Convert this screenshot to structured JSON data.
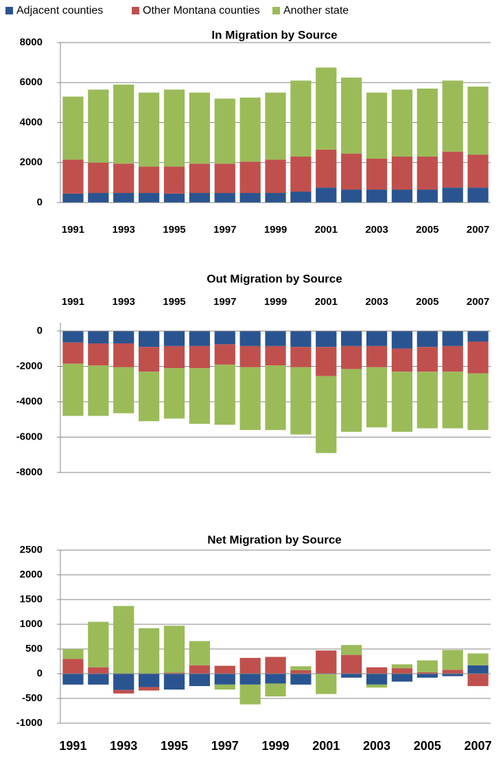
{
  "legend": {
    "series": [
      {
        "name": "Adjacent counties",
        "color": "#2a5490"
      },
      {
        "name": "Other Montana counties",
        "color": "#c0504d"
      },
      {
        "name": "Another state",
        "color": "#9bbb59"
      }
    ]
  },
  "chart_data": [
    {
      "type": "bar",
      "stacked": true,
      "title": "In Migration  by Source",
      "categories": [
        "1991",
        null,
        "1993",
        null,
        "1995",
        null,
        "1997",
        null,
        "1999",
        null,
        "2001",
        null,
        "2003",
        null,
        "2005",
        null,
        "2007"
      ],
      "series": [
        {
          "values": [
            450,
            480,
            480,
            480,
            450,
            480,
            480,
            480,
            480,
            550,
            750,
            650,
            650,
            650,
            650,
            750,
            750
          ]
        },
        {
          "values": [
            1700,
            1520,
            1470,
            1320,
            1350,
            1470,
            1470,
            1570,
            1670,
            1750,
            1900,
            1800,
            1550,
            1650,
            1650,
            1800,
            1650
          ]
        },
        {
          "values": [
            3150,
            3650,
            3950,
            3700,
            3850,
            3550,
            3250,
            3200,
            3350,
            3800,
            4100,
            3800,
            3300,
            3350,
            3400,
            3550,
            3400
          ]
        }
      ],
      "ylim": [
        0,
        8000
      ],
      "yticks": [
        0,
        2000,
        4000,
        6000,
        8000
      ],
      "grid": true
    },
    {
      "type": "bar",
      "stacked": true,
      "title": "Out Migration  by Source",
      "categories": [
        "1991",
        null,
        "1993",
        null,
        "1995",
        null,
        "1997",
        null,
        "1999",
        null,
        "2001",
        null,
        "2003",
        null,
        "2005",
        null,
        "2007"
      ],
      "series": [
        {
          "values": [
            -650,
            -700,
            -700,
            -900,
            -850,
            -850,
            -750,
            -850,
            -850,
            -900,
            -900,
            -850,
            -850,
            -1000,
            -900,
            -850,
            -600
          ]
        },
        {
          "values": [
            -1200,
            -1250,
            -1350,
            -1400,
            -1250,
            -1250,
            -1150,
            -1200,
            -1100,
            -1150,
            -1650,
            -1300,
            -1200,
            -1300,
            -1400,
            -1450,
            -1800
          ]
        },
        {
          "values": [
            -2950,
            -2850,
            -2600,
            -2800,
            -2850,
            -3150,
            -3400,
            -3550,
            -3650,
            -3800,
            -4350,
            -3550,
            -3400,
            -3400,
            -3200,
            -3200,
            -3200
          ]
        }
      ],
      "ylim": [
        -8000,
        0
      ],
      "yticks": [
        -8000,
        -6000,
        -4000,
        -2000,
        0
      ],
      "grid": true
    },
    {
      "type": "bar",
      "stacked": true,
      "title": "Net Migration by Source",
      "categories": [
        "1991",
        null,
        "1993",
        null,
        "1995",
        null,
        "1997",
        null,
        "1999",
        null,
        "2001",
        null,
        "2003",
        null,
        "2005",
        null,
        "2007"
      ],
      "series": [
        {
          "values": [
            -220,
            -220,
            -330,
            -270,
            -320,
            -250,
            -220,
            -220,
            -200,
            -220,
            -10,
            -80,
            -220,
            -160,
            -80,
            -50,
            170
          ]
        },
        {
          "values": [
            300,
            130,
            -70,
            -70,
            20,
            170,
            160,
            320,
            340,
            70,
            470,
            380,
            130,
            110,
            30,
            80,
            -250
          ]
        },
        {
          "values": [
            200,
            920,
            1370,
            920,
            950,
            490,
            -100,
            -400,
            -260,
            80,
            -400,
            200,
            -60,
            80,
            240,
            400,
            240
          ]
        }
      ],
      "ylim": [
        -1000,
        2500
      ],
      "yticks": [
        -1000,
        -500,
        0,
        500,
        1000,
        1500,
        2000,
        2500
      ],
      "grid": true
    }
  ]
}
